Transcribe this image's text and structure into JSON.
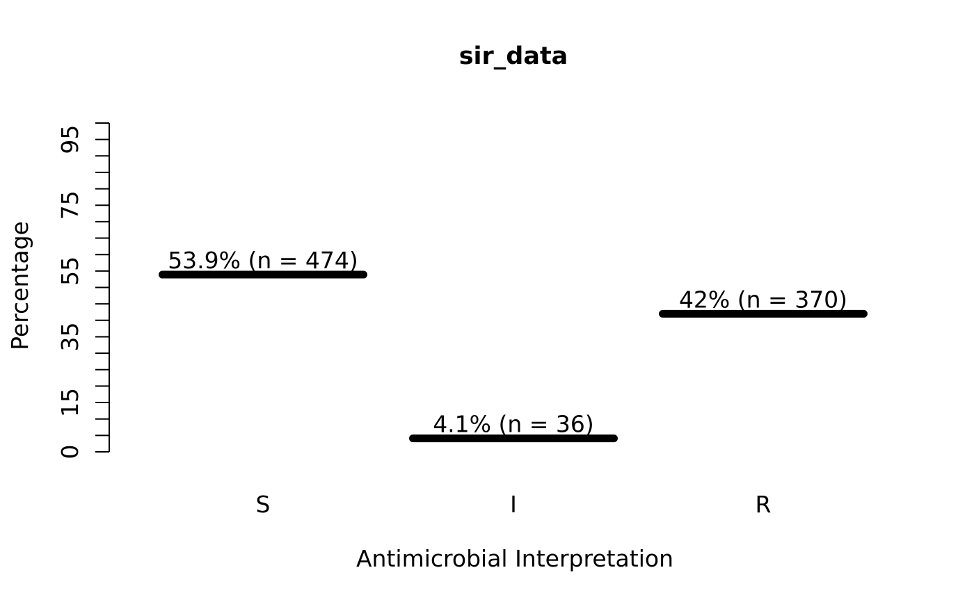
{
  "chart_data": {
    "type": "bar",
    "title": "sir_data",
    "xlabel": "Antimicrobial Interpretation",
    "ylabel": "Percentage",
    "categories": [
      "S",
      "I",
      "R"
    ],
    "values": [
      53.9,
      4.1,
      42
    ],
    "counts": [
      474,
      36,
      370
    ],
    "bar_labels": [
      "53.9% (n = 474)",
      "4.1% (n = 36)",
      "42% (n = 370)"
    ],
    "ylim": [
      0,
      100
    ],
    "y_tick_step": 5,
    "y_labeled_ticks": [
      0,
      15,
      35,
      55,
      75,
      95
    ],
    "grid": false,
    "legend_position": "none",
    "bar_color": "#000000",
    "axis_color": "#000000",
    "text_color": "#000000",
    "background_color": "#ffffff"
  }
}
